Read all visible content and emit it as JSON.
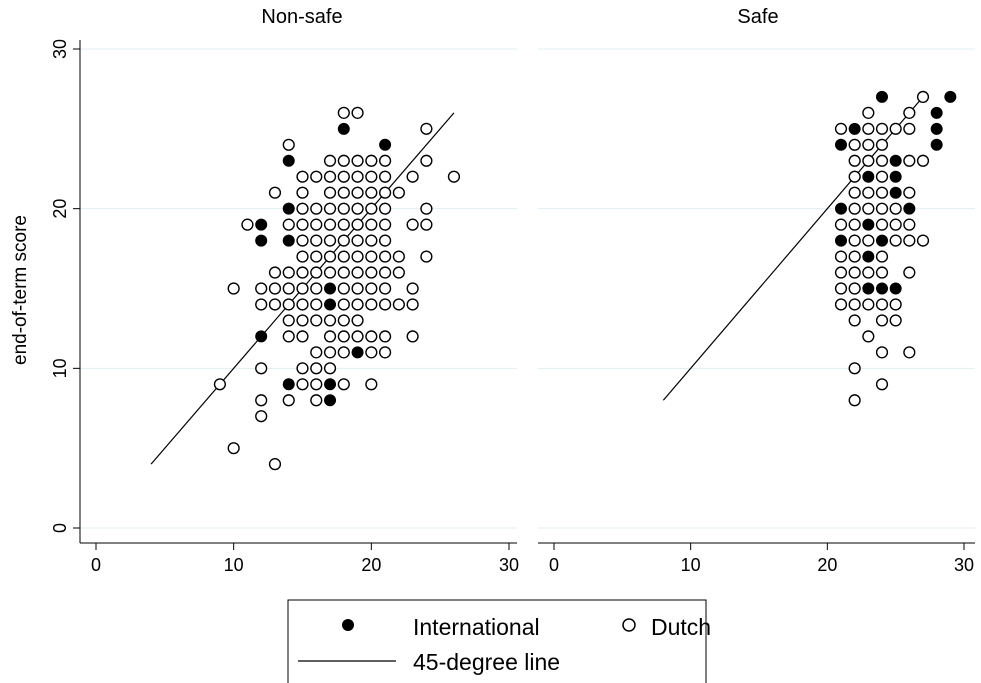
{
  "chart_data": {
    "type": "scatter",
    "ylabel": "end-of-term score",
    "xlabel": "",
    "xlim": [
      0,
      30
    ],
    "ylim": [
      0,
      30
    ],
    "xticks": [
      0,
      10,
      20,
      30
    ],
    "yticks": [
      0,
      10,
      20,
      30
    ],
    "grid": "horizontal",
    "legend": {
      "placement": "bottom-center",
      "entries": [
        {
          "label": "International",
          "marker": "filled-circle"
        },
        {
          "label": "Dutch",
          "marker": "hollow-circle"
        },
        {
          "label": "45-degree line",
          "marker": "line"
        }
      ]
    },
    "panels": [
      {
        "title": "Non-safe",
        "reference_line": {
          "x": [
            4,
            26
          ],
          "y": [
            4,
            26
          ]
        },
        "series": [
          {
            "name": "International",
            "points": [
              [
                12,
                19
              ],
              [
                12,
                18
              ],
              [
                12,
                12
              ],
              [
                14,
                23
              ],
              [
                14,
                20
              ],
              [
                14,
                18
              ],
              [
                14,
                9
              ],
              [
                17,
                15
              ],
              [
                17,
                14
              ],
              [
                17,
                9
              ],
              [
                17,
                8
              ],
              [
                18,
                25
              ],
              [
                19,
                11
              ],
              [
                21,
                24
              ]
            ]
          },
          {
            "name": "Dutch",
            "points": [
              [
                9,
                9
              ],
              [
                10,
                15
              ],
              [
                10,
                5
              ],
              [
                11,
                19
              ],
              [
                12,
                15
              ],
              [
                12,
                14
              ],
              [
                12,
                10
              ],
              [
                12,
                8
              ],
              [
                12,
                7
              ],
              [
                13,
                21
              ],
              [
                13,
                16
              ],
              [
                13,
                15
              ],
              [
                13,
                14
              ],
              [
                13,
                4
              ],
              [
                14,
                24
              ],
              [
                14,
                19
              ],
              [
                14,
                16
              ],
              [
                14,
                15
              ],
              [
                14,
                14
              ],
              [
                14,
                13
              ],
              [
                14,
                12
              ],
              [
                14,
                8
              ],
              [
                15,
                22
              ],
              [
                15,
                21
              ],
              [
                15,
                20
              ],
              [
                15,
                19
              ],
              [
                15,
                18
              ],
              [
                15,
                17
              ],
              [
                15,
                16
              ],
              [
                15,
                15
              ],
              [
                15,
                14
              ],
              [
                15,
                13
              ],
              [
                15,
                12
              ],
              [
                15,
                10
              ],
              [
                15,
                9
              ],
              [
                16,
                22
              ],
              [
                16,
                20
              ],
              [
                16,
                19
              ],
              [
                16,
                18
              ],
              [
                16,
                17
              ],
              [
                16,
                16
              ],
              [
                16,
                15
              ],
              [
                16,
                14
              ],
              [
                16,
                13
              ],
              [
                16,
                11
              ],
              [
                16,
                10
              ],
              [
                16,
                9
              ],
              [
                16,
                8
              ],
              [
                17,
                23
              ],
              [
                17,
                22
              ],
              [
                17,
                21
              ],
              [
                17,
                20
              ],
              [
                17,
                19
              ],
              [
                17,
                18
              ],
              [
                17,
                17
              ],
              [
                17,
                16
              ],
              [
                17,
                13
              ],
              [
                17,
                12
              ],
              [
                17,
                11
              ],
              [
                17,
                10
              ],
              [
                18,
                26
              ],
              [
                18,
                23
              ],
              [
                18,
                22
              ],
              [
                18,
                21
              ],
              [
                18,
                20
              ],
              [
                18,
                19
              ],
              [
                18,
                18
              ],
              [
                18,
                17
              ],
              [
                18,
                16
              ],
              [
                18,
                15
              ],
              [
                18,
                14
              ],
              [
                18,
                13
              ],
              [
                18,
                12
              ],
              [
                18,
                11
              ],
              [
                18,
                9
              ],
              [
                19,
                26
              ],
              [
                19,
                23
              ],
              [
                19,
                22
              ],
              [
                19,
                21
              ],
              [
                19,
                20
              ],
              [
                19,
                19
              ],
              [
                19,
                18
              ],
              [
                19,
                17
              ],
              [
                19,
                16
              ],
              [
                19,
                15
              ],
              [
                19,
                14
              ],
              [
                19,
                13
              ],
              [
                19,
                12
              ],
              [
                20,
                23
              ],
              [
                20,
                22
              ],
              [
                20,
                21
              ],
              [
                20,
                20
              ],
              [
                20,
                19
              ],
              [
                20,
                18
              ],
              [
                20,
                17
              ],
              [
                20,
                16
              ],
              [
                20,
                15
              ],
              [
                20,
                14
              ],
              [
                20,
                12
              ],
              [
                20,
                11
              ],
              [
                20,
                9
              ],
              [
                21,
                23
              ],
              [
                21,
                22
              ],
              [
                21,
                21
              ],
              [
                21,
                20
              ],
              [
                21,
                19
              ],
              [
                21,
                18
              ],
              [
                21,
                17
              ],
              [
                21,
                16
              ],
              [
                21,
                15
              ],
              [
                21,
                14
              ],
              [
                21,
                12
              ],
              [
                21,
                11
              ],
              [
                22,
                21
              ],
              [
                22,
                17
              ],
              [
                22,
                16
              ],
              [
                22,
                14
              ],
              [
                23,
                22
              ],
              [
                23,
                19
              ],
              [
                23,
                15
              ],
              [
                23,
                14
              ],
              [
                23,
                12
              ],
              [
                24,
                25
              ],
              [
                24,
                23
              ],
              [
                24,
                20
              ],
              [
                24,
                19
              ],
              [
                24,
                17
              ],
              [
                26,
                22
              ]
            ]
          }
        ]
      },
      {
        "title": "Safe",
        "reference_line": {
          "x": [
            8,
            27
          ],
          "y": [
            8,
            27
          ]
        },
        "series": [
          {
            "name": "International",
            "points": [
              [
                21,
                24
              ],
              [
                21,
                20
              ],
              [
                21,
                18
              ],
              [
                22,
                25
              ],
              [
                23,
                22
              ],
              [
                23,
                19
              ],
              [
                23,
                17
              ],
              [
                23,
                15
              ],
              [
                24,
                27
              ],
              [
                24,
                18
              ],
              [
                24,
                15
              ],
              [
                25,
                23
              ],
              [
                25,
                22
              ],
              [
                25,
                21
              ],
              [
                25,
                15
              ],
              [
                26,
                20
              ],
              [
                28,
                26
              ],
              [
                28,
                25
              ],
              [
                28,
                24
              ],
              [
                29,
                27
              ]
            ]
          },
          {
            "name": "Dutch",
            "points": [
              [
                21,
                25
              ],
              [
                21,
                19
              ],
              [
                21,
                17
              ],
              [
                21,
                16
              ],
              [
                21,
                15
              ],
              [
                21,
                14
              ],
              [
                22,
                24
              ],
              [
                22,
                23
              ],
              [
                22,
                22
              ],
              [
                22,
                21
              ],
              [
                22,
                20
              ],
              [
                22,
                19
              ],
              [
                22,
                18
              ],
              [
                22,
                17
              ],
              [
                22,
                16
              ],
              [
                22,
                15
              ],
              [
                22,
                14
              ],
              [
                22,
                13
              ],
              [
                22,
                10
              ],
              [
                22,
                8
              ],
              [
                23,
                26
              ],
              [
                23,
                25
              ],
              [
                23,
                24
              ],
              [
                23,
                23
              ],
              [
                23,
                21
              ],
              [
                23,
                20
              ],
              [
                23,
                18
              ],
              [
                23,
                16
              ],
              [
                23,
                14
              ],
              [
                23,
                12
              ],
              [
                24,
                25
              ],
              [
                24,
                24
              ],
              [
                24,
                23
              ],
              [
                24,
                22
              ],
              [
                24,
                21
              ],
              [
                24,
                20
              ],
              [
                24,
                19
              ],
              [
                24,
                17
              ],
              [
                24,
                16
              ],
              [
                24,
                14
              ],
              [
                24,
                13
              ],
              [
                24,
                11
              ],
              [
                24,
                9
              ],
              [
                25,
                25
              ],
              [
                25,
                20
              ],
              [
                25,
                19
              ],
              [
                25,
                18
              ],
              [
                25,
                14
              ],
              [
                25,
                13
              ],
              [
                26,
                26
              ],
              [
                26,
                25
              ],
              [
                26,
                23
              ],
              [
                26,
                21
              ],
              [
                26,
                19
              ],
              [
                26,
                18
              ],
              [
                26,
                16
              ],
              [
                26,
                11
              ],
              [
                27,
                27
              ],
              [
                27,
                23
              ],
              [
                27,
                18
              ]
            ]
          }
        ]
      }
    ]
  }
}
